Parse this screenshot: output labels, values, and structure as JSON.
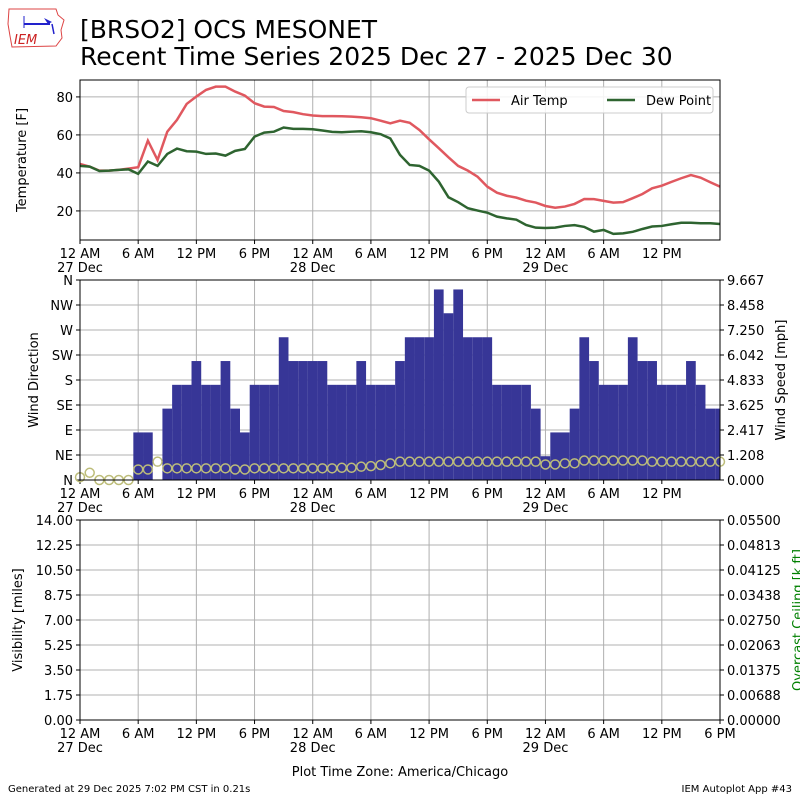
{
  "title": {
    "line1": "[BRSO2] OCS MESONET",
    "line2": "Recent Time Series 2025 Dec 27 - 2025 Dec 30"
  },
  "logo_text": "IEM",
  "footer": {
    "left": "Generated at 29 Dec 2025 7:02 PM CST in 0.21s",
    "right": "IEM Autoplot App #43"
  },
  "xaxis": {
    "label": "Plot Time Zone: America/Chicago",
    "start": "2025-12-27 00:00",
    "end": "2025-12-29 18:00",
    "ticks": [
      {
        "t": "2025-12-27 00:00",
        "label": "12 AM",
        "date": "27 Dec"
      },
      {
        "t": "2025-12-27 06:00",
        "label": "6 AM",
        "date": ""
      },
      {
        "t": "2025-12-27 12:00",
        "label": "12 PM",
        "date": ""
      },
      {
        "t": "2025-12-27 18:00",
        "label": "6 PM",
        "date": ""
      },
      {
        "t": "2025-12-28 00:00",
        "label": "12 AM",
        "date": "28 Dec"
      },
      {
        "t": "2025-12-28 06:00",
        "label": "6 AM",
        "date": ""
      },
      {
        "t": "2025-12-28 12:00",
        "label": "12 PM",
        "date": ""
      },
      {
        "t": "2025-12-28 18:00",
        "label": "6 PM",
        "date": ""
      },
      {
        "t": "2025-12-29 00:00",
        "label": "12 AM",
        "date": "29 Dec"
      },
      {
        "t": "2025-12-29 06:00",
        "label": "6 AM",
        "date": ""
      },
      {
        "t": "2025-12-29 12:00",
        "label": "12 PM",
        "date": ""
      },
      {
        "t": "2025-12-29 18:00",
        "label": "6 PM",
        "date": ""
      }
    ]
  },
  "chart_data": [
    {
      "type": "line",
      "ylabel": "Temperature [F]",
      "ylim": [
        4.7,
        88.9
      ],
      "yticks": [
        20,
        40,
        60,
        80
      ],
      "grid": true,
      "legend": "top-right",
      "x_start": "2025-12-27 00:00",
      "x_step_minutes": 60,
      "series": [
        {
          "name": "Air Temp",
          "color": "#e0585f",
          "values": [
            44.7,
            43.3,
            41.2,
            41.2,
            41.6,
            42.3,
            43.0,
            57.0,
            46.8,
            61.7,
            67.9,
            76.3,
            80.2,
            83.7,
            85.4,
            85.4,
            82.8,
            80.7,
            76.7,
            74.9,
            74.7,
            72.6,
            72.0,
            70.9,
            70.2,
            69.9,
            69.9,
            69.8,
            69.6,
            69.3,
            68.8,
            67.5,
            66.1,
            67.5,
            66.4,
            62.6,
            57.7,
            53.0,
            48.2,
            43.7,
            41.2,
            38.0,
            32.8,
            29.6,
            28.0,
            27.0,
            25.4,
            24.4,
            22.6,
            21.7,
            22.3,
            23.7,
            26.3,
            26.2,
            25.3,
            24.4,
            24.6,
            26.7,
            28.9,
            31.9,
            33.3,
            35.3,
            37.2,
            38.9,
            37.5,
            35.1,
            32.8
          ]
        },
        {
          "name": "Dew Point",
          "color": "#2e6430",
          "values": [
            43.7,
            43.3,
            41.0,
            41.2,
            41.6,
            41.9,
            39.5,
            46.0,
            43.7,
            50.0,
            52.8,
            51.4,
            51.2,
            50.0,
            50.2,
            49.1,
            51.6,
            52.6,
            59.1,
            61.2,
            61.7,
            63.9,
            63.2,
            63.2,
            63.0,
            62.3,
            61.6,
            61.4,
            61.7,
            61.9,
            61.4,
            60.4,
            58.1,
            49.5,
            44.2,
            43.7,
            41.2,
            35.4,
            27.2,
            24.6,
            21.4,
            20.2,
            19.1,
            17.0,
            16.1,
            15.4,
            12.6,
            11.2,
            11.0,
            11.2,
            12.1,
            12.5,
            11.6,
            9.1,
            10.0,
            7.9,
            8.2,
            9.0,
            10.5,
            11.8,
            12.1,
            13.0,
            13.8,
            13.8,
            13.5,
            13.5,
            13.1
          ]
        }
      ]
    },
    {
      "type": "bar+scatter",
      "ylabel": "Wind Direction",
      "ylabel_right": "Wind Speed [mph]",
      "ylim": [
        0,
        360
      ],
      "ylim_right": [
        0,
        9.667
      ],
      "yticks": [
        {
          "v": 0,
          "label": "N"
        },
        {
          "v": 45,
          "label": "NE"
        },
        {
          "v": 90,
          "label": "E"
        },
        {
          "v": 135,
          "label": "SE"
        },
        {
          "v": 180,
          "label": "S"
        },
        {
          "v": 225,
          "label": "SW"
        },
        {
          "v": 270,
          "label": "W"
        },
        {
          "v": 315,
          "label": "NW"
        },
        {
          "v": 360,
          "label": "N"
        }
      ],
      "yticks_right": [
        "0.000",
        "1.208",
        "2.417",
        "3.625",
        "4.833",
        "6.042",
        "7.250",
        "8.458",
        "9.667"
      ],
      "grid": true,
      "x_start": "2025-12-27 00:00",
      "x_step_minutes": 60,
      "speed_color": "#373697",
      "direction_color": "#bdbd7a",
      "wind_speed_mph": [
        0,
        0,
        0,
        0,
        0,
        0,
        2.3,
        2.3,
        0,
        3.45,
        4.6,
        4.6,
        5.75,
        4.6,
        4.6,
        5.75,
        3.45,
        2.3,
        4.6,
        4.6,
        4.6,
        6.9,
        5.75,
        5.75,
        5.75,
        5.75,
        4.6,
        4.6,
        4.6,
        5.75,
        4.6,
        4.6,
        4.6,
        5.75,
        6.9,
        6.9,
        6.9,
        9.21,
        8.06,
        9.21,
        6.9,
        6.9,
        6.9,
        4.6,
        4.6,
        4.6,
        4.6,
        3.45,
        1.15,
        2.3,
        2.3,
        3.45,
        6.9,
        5.75,
        4.6,
        4.6,
        4.6,
        6.9,
        5.75,
        5.75,
        4.6,
        4.6,
        4.6,
        5.75,
        4.6,
        3.45,
        3.45
      ],
      "wind_direction_deg": [
        5,
        13,
        0,
        0,
        0,
        0,
        19,
        19,
        33,
        21,
        21,
        21,
        21,
        21,
        21,
        21,
        19,
        19,
        21,
        21,
        21,
        21,
        21,
        21,
        21,
        21,
        21,
        22,
        22,
        24,
        25,
        27,
        30,
        33,
        33,
        33,
        33,
        33,
        33,
        33,
        33,
        33,
        33,
        33,
        33,
        33,
        33,
        33,
        28,
        28,
        30,
        30,
        35,
        35,
        35,
        35,
        35,
        35,
        35,
        33,
        33,
        33,
        33,
        33,
        33,
        33,
        33
      ]
    },
    {
      "type": "line",
      "ylabel": "Visibility [miles]",
      "ylabel_right": "Overcast Ceiling [k ft]",
      "ylabel_right_color": "#008000",
      "ylim": [
        0,
        14
      ],
      "ylim_right": [
        0,
        0.055
      ],
      "yticks": [
        "0.00",
        "1.75",
        "3.50",
        "5.25",
        "7.00",
        "8.75",
        "10.50",
        "12.25",
        "14.00"
      ],
      "yticks_right": [
        "0.00000",
        "0.00688",
        "0.01375",
        "0.02063",
        "0.02750",
        "0.03438",
        "0.04125",
        "0.04813",
        "0.05500"
      ],
      "grid": true,
      "series": []
    }
  ]
}
